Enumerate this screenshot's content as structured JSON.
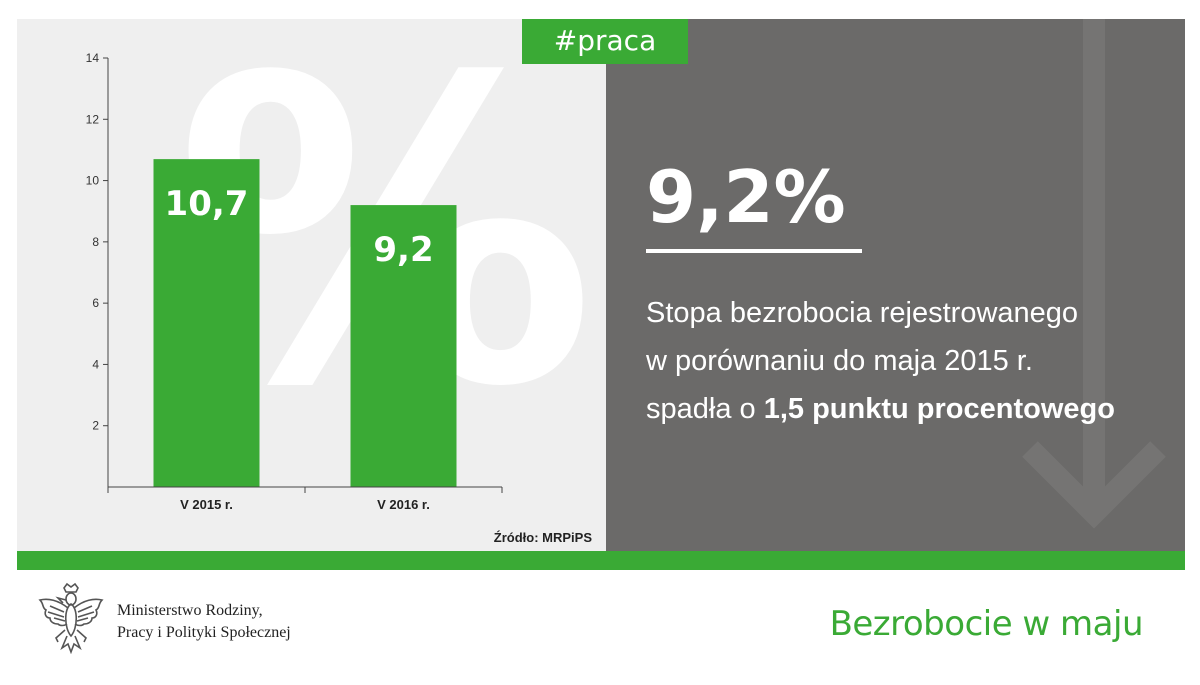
{
  "tag": "#praca",
  "headline_value": "9,2%",
  "description": {
    "line1": "Stopa bezrobocia rejestrowanego",
    "line2": "w porównaniu do maja 2015 r.",
    "line3_prefix": "spadła o ",
    "line3_bold": "1,5 punktu procentowego"
  },
  "source": "Źródło: MRPiPS",
  "footer": {
    "ministry_line1": "Ministerstwo Rodziny,",
    "ministry_line2": "Pracy i Polityki Społecznej",
    "title": "Bezrobocie w maju"
  },
  "colors": {
    "accent_green": "#3aaa35",
    "panel_gray": "#6b6a69",
    "chart_bg": "#efefef"
  },
  "chart_data": {
    "type": "bar",
    "categories": [
      "V 2015 r.",
      "V 2016 r."
    ],
    "values": [
      10.7,
      9.2
    ],
    "value_labels": [
      "10,7",
      "9,2"
    ],
    "yticks": [
      2,
      4,
      6,
      8,
      10,
      12,
      14
    ],
    "ylim": [
      0,
      14
    ],
    "title": "",
    "xlabel": "",
    "ylabel": "",
    "grid": false,
    "legend": "none"
  }
}
